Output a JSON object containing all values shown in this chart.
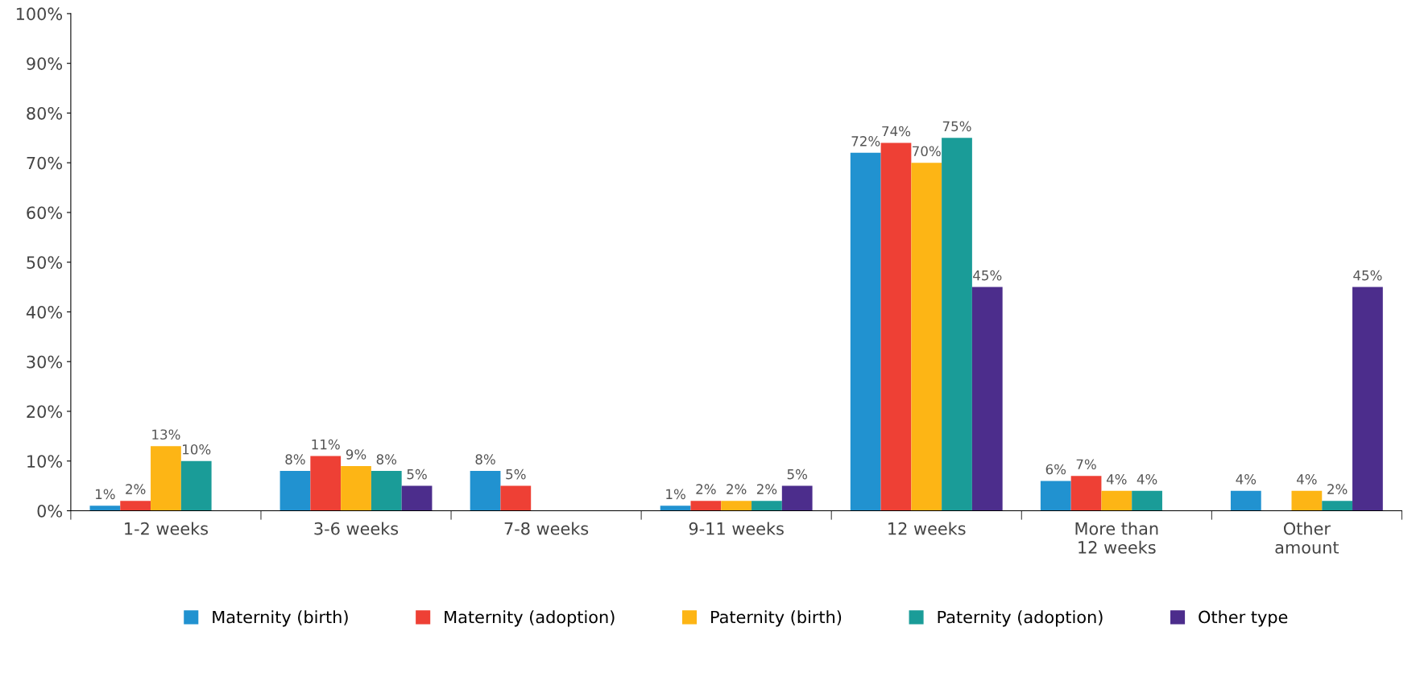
{
  "chart_data": {
    "type": "bar",
    "categories": [
      "1-2 weeks",
      "3-6 weeks",
      "7-8 weeks",
      "9-11 weeks",
      "12 weeks",
      "More than\n12 weeks",
      "Other\namount"
    ],
    "series": [
      {
        "name": "Maternity (birth)",
        "color": "#2192d0",
        "values": [
          1,
          8,
          8,
          1,
          72,
          6,
          4
        ],
        "value_labels": [
          "1%",
          "8%",
          "8%",
          "1%",
          "72%",
          "6%",
          "4%"
        ]
      },
      {
        "name": "Maternity (adoption)",
        "color": "#ee4035",
        "values": [
          2,
          11,
          5,
          2,
          74,
          7,
          null
        ],
        "value_labels": [
          "2%",
          "11%",
          "5%",
          "2%",
          "74%",
          "7%",
          null
        ]
      },
      {
        "name": "Paternity (birth)",
        "color": "#fdb515",
        "values": [
          13,
          9,
          null,
          2,
          70,
          4,
          4
        ],
        "value_labels": [
          "13%",
          "9%",
          null,
          "2%",
          "70%",
          "4%",
          "4%"
        ]
      },
      {
        "name": "Paternity (adoption)",
        "color": "#1a9c98",
        "values": [
          10,
          8,
          null,
          2,
          75,
          4,
          2
        ],
        "value_labels": [
          "10%",
          "8%",
          null,
          "2%",
          "75%",
          "4%",
          "2%"
        ]
      },
      {
        "name": "Other type",
        "color": "#4c2d8c",
        "values": [
          null,
          5,
          null,
          5,
          45,
          null,
          45
        ],
        "value_labels": [
          null,
          "5%",
          null,
          "5%",
          "45%",
          null,
          "45%"
        ]
      }
    ],
    "ylim": [
      0,
      100
    ],
    "yticks": [
      {
        "value": 0,
        "label": "0%"
      },
      {
        "value": 10,
        "label": "10%"
      },
      {
        "value": 20,
        "label": "20%"
      },
      {
        "value": 30,
        "label": "30%"
      },
      {
        "value": 40,
        "label": "40%"
      },
      {
        "value": 50,
        "label": "50%"
      },
      {
        "value": 60,
        "label": "60%"
      },
      {
        "value": 70,
        "label": "70%"
      },
      {
        "value": 80,
        "label": "80%"
      },
      {
        "value": 90,
        "label": "90%"
      },
      {
        "value": 100,
        "label": "100%"
      }
    ],
    "legend": "bottom",
    "grid": false
  }
}
